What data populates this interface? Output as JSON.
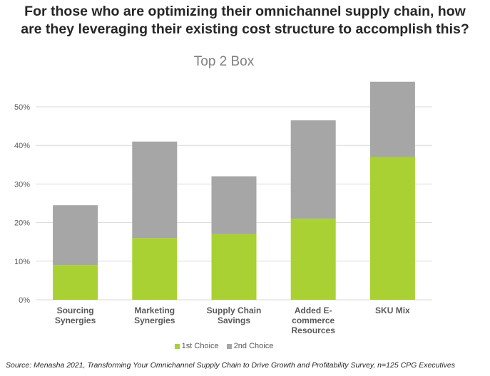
{
  "headline": {
    "line1": "For those who are optimizing their omnichannel supply chain, how",
    "line2": "are they leveraging their existing cost structure to accomplish this?"
  },
  "source": "Source: Menasha 2021, Transforming Your Omnichannel Supply Chain to Drive Growth and Profitability Survey, n=125 CPG Executives",
  "colors": {
    "first": "#a9d134",
    "second": "#a6a6a6",
    "grid": "#d9d9d9",
    "axis_text": "#595959"
  },
  "chart_data": {
    "type": "bar",
    "stacked": true,
    "title": "Top 2 Box",
    "categories": [
      [
        "Sourcing",
        "Synergies"
      ],
      [
        "Marketing",
        "Synergies"
      ],
      [
        "Supply Chain",
        "Savings"
      ],
      [
        "Added E-",
        "commerce",
        "Resources"
      ],
      [
        "SKU Mix"
      ]
    ],
    "series": [
      {
        "name": "1st Choice",
        "values": [
          9,
          16,
          17,
          21,
          37
        ]
      },
      {
        "name": "2nd Choice",
        "values": [
          15.5,
          25,
          15,
          25.5,
          19.5
        ]
      }
    ],
    "ylim": [
      0,
      55
    ],
    "yticks": [
      "0%",
      "10%",
      "20%",
      "30%",
      "40%",
      "50%"
    ],
    "ytick_values": [
      0,
      10,
      20,
      30,
      40,
      50
    ],
    "grid": true,
    "legend_position": "bottom"
  }
}
